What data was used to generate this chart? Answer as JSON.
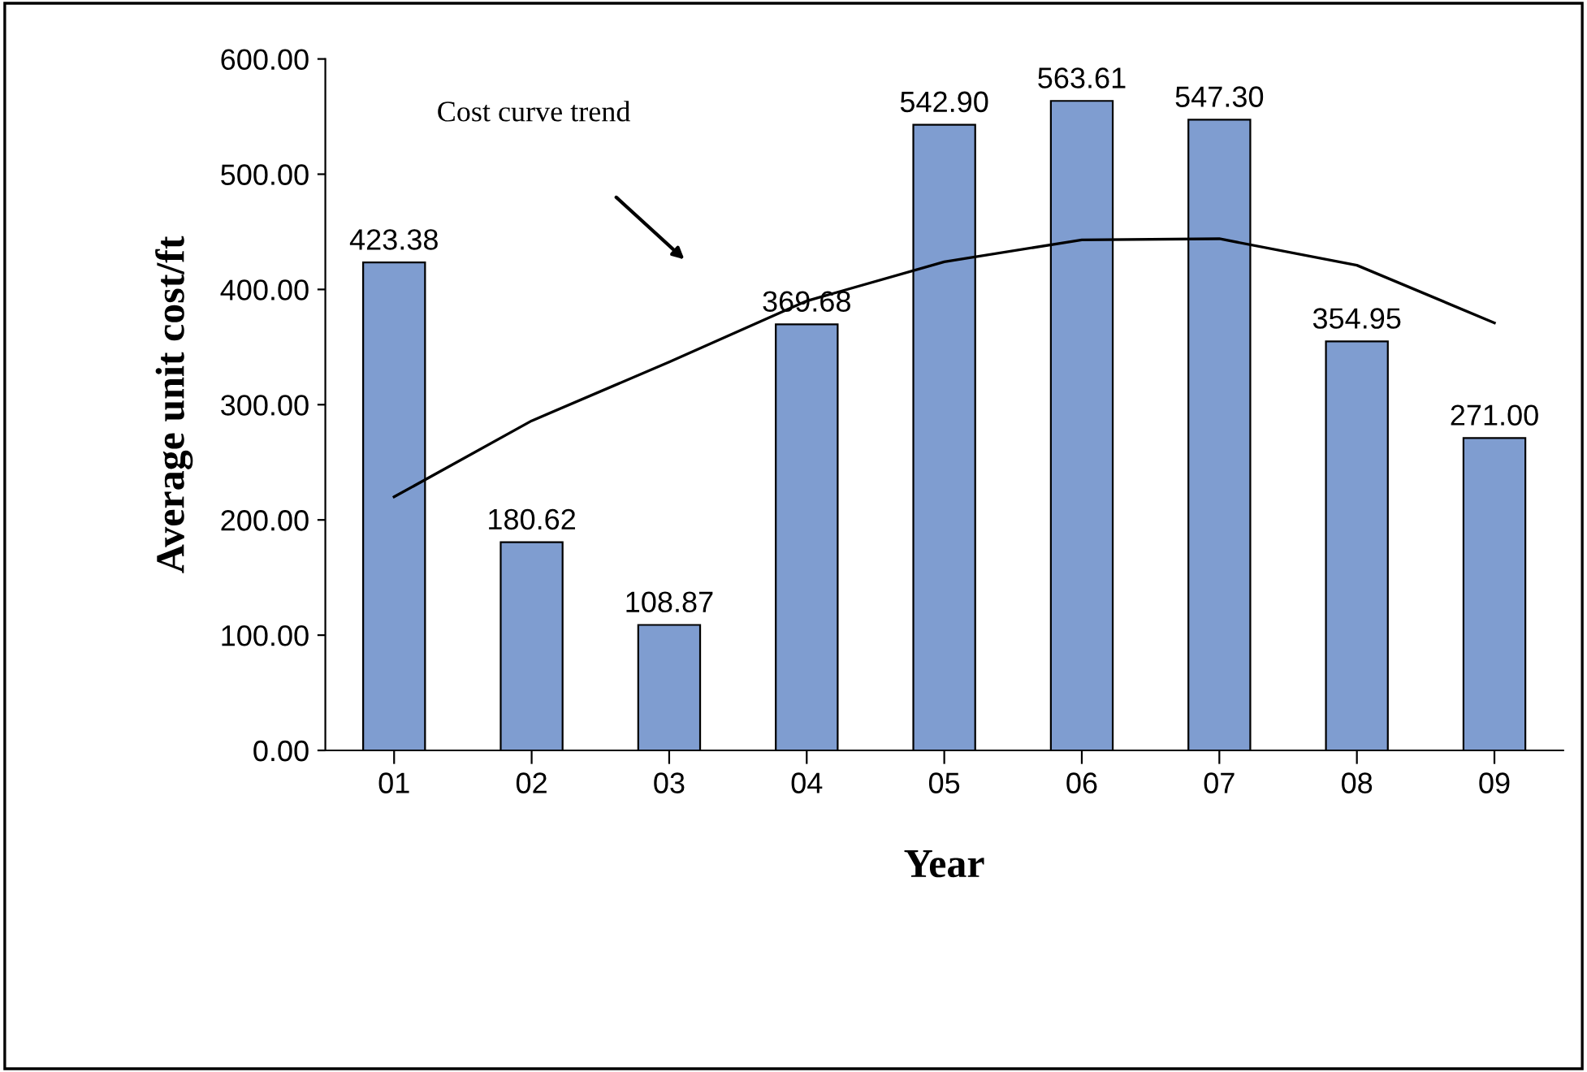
{
  "chart_data": {
    "type": "bar",
    "xlabel": "Year",
    "ylabel": "Average unit cost/ft",
    "categories": [
      "01",
      "02",
      "03",
      "04",
      "05",
      "06",
      "07",
      "08",
      "09"
    ],
    "series": [
      {
        "color": "#7f9dd0",
        "values": [
          423.38,
          180.62,
          108.87,
          369.68,
          542.9,
          563.61,
          547.3,
          354.95,
          271.0
        ],
        "value_labels": [
          "423.38",
          "180.62",
          "108.87",
          "369.68",
          "542.90",
          "563.61",
          "547.30",
          "354.95",
          "271.00"
        ]
      },
      {
        "type": "line",
        "color": "#000000",
        "values": [
          220,
          286,
          337,
          390,
          424,
          443,
          444,
          421,
          371
        ]
      }
    ],
    "ylim": [
      0,
      600
    ],
    "yticks": [
      {
        "value": 0,
        "label": "0.00"
      },
      {
        "value": 100,
        "label": "100.00"
      },
      {
        "value": 200,
        "label": "200.00"
      },
      {
        "value": 300,
        "label": "300.00"
      },
      {
        "value": 400,
        "label": "400.00"
      },
      {
        "value": 500,
        "label": "500.00"
      },
      {
        "value": 600,
        "label": "600.00"
      }
    ],
    "annotations": [
      "Cost curve trend"
    ],
    "grid": false,
    "legend": false
  }
}
